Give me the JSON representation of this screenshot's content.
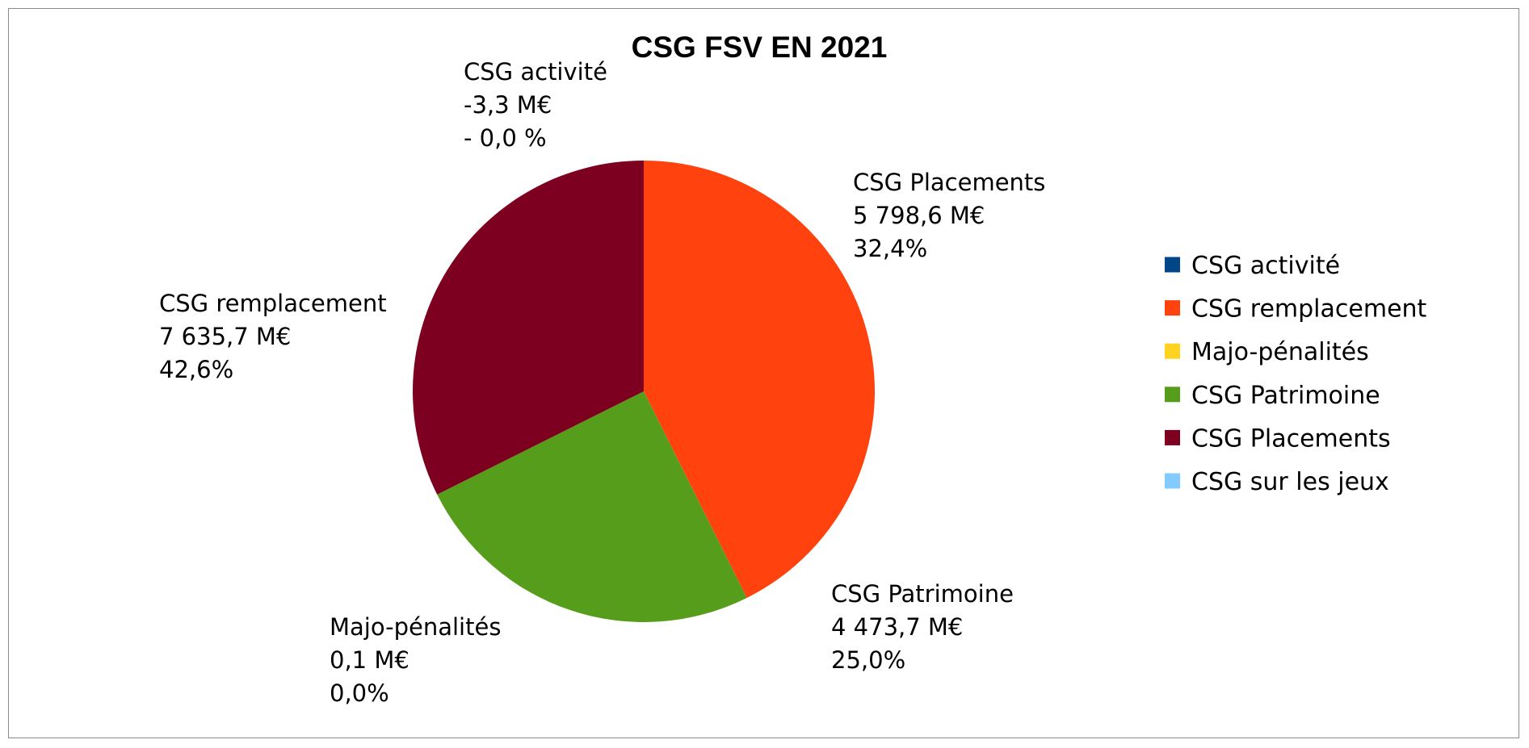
{
  "chart_data": {
    "type": "pie",
    "title": "CSG FSV EN 2021",
    "legend_position": "right",
    "slices": [
      {
        "name": "CSG activité",
        "value": -3.3,
        "value_label": "-3,3 M€",
        "percent_label": "- 0,0 %",
        "color": "#004586"
      },
      {
        "name": "CSG remplacement",
        "value": 7635.7,
        "value_label": "7 635,7 M€",
        "percent_label": "42,6%",
        "color": "#ff420e"
      },
      {
        "name": "Majo-pénalités",
        "value": 0.1,
        "value_label": "0,1 M€",
        "percent_label": "0,0%",
        "color": "#ffd320"
      },
      {
        "name": "CSG Patrimoine",
        "value": 4473.7,
        "value_label": "4 473,7 M€",
        "percent_label": "25,0%",
        "color": "#579d1c"
      },
      {
        "name": "CSG Placements",
        "value": 5798.6,
        "value_label": "5 798,6 M€",
        "percent_label": "32,4%",
        "color": "#7e0021"
      },
      {
        "name": "CSG sur les jeux",
        "value": null,
        "value_label": "",
        "percent_label": "",
        "color": "#83caff"
      }
    ]
  }
}
